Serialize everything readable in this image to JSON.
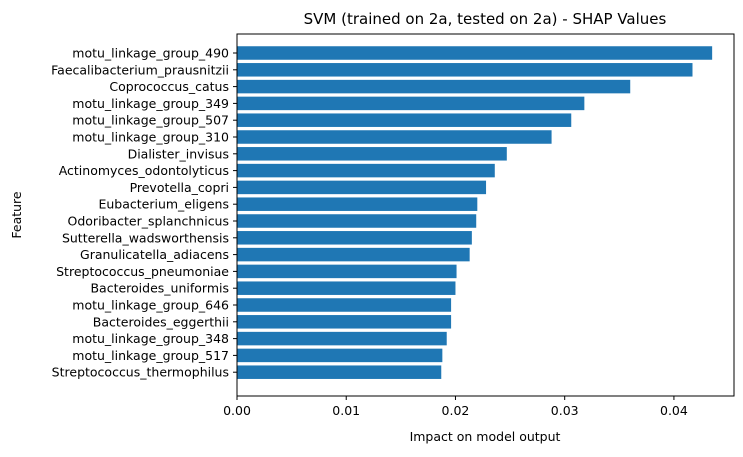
{
  "chart_data": {
    "type": "bar",
    "orientation": "horizontal",
    "title": "SVM (trained on 2a, tested on 2a) -  SHAP Values",
    "xlabel": "Impact on model output",
    "ylabel": "Feature",
    "xlim": [
      0,
      0.0455
    ],
    "xticks": [
      0.0,
      0.01,
      0.02,
      0.03,
      0.04
    ],
    "xtick_labels": [
      "0.00",
      "0.01",
      "0.02",
      "0.03",
      "0.04"
    ],
    "grid": false,
    "bar_color": "#1f77b4",
    "categories": [
      "motu_linkage_group_490",
      "Faecalibacterium_prausnitzii",
      "Coprococcus_catus",
      "motu_linkage_group_349",
      "motu_linkage_group_507",
      "motu_linkage_group_310",
      "Dialister_invisus",
      "Actinomyces_odontolyticus",
      "Prevotella_copri",
      "Eubacterium_eligens",
      "Odoribacter_splanchnicus",
      "Sutterella_wadsworthensis",
      "Granulicatella_adiacens",
      "Streptococcus_pneumoniae",
      "Bacteroides_uniformis",
      "motu_linkage_group_646",
      "Bacteroides_eggerthii",
      "motu_linkage_group_348",
      "motu_linkage_group_517",
      "Streptococcus_thermophilus"
    ],
    "values": [
      0.0435,
      0.0417,
      0.036,
      0.0318,
      0.0306,
      0.0288,
      0.0247,
      0.0236,
      0.0228,
      0.022,
      0.0219,
      0.0215,
      0.0213,
      0.0201,
      0.02,
      0.0196,
      0.0196,
      0.0192,
      0.0188,
      0.0187
    ]
  }
}
